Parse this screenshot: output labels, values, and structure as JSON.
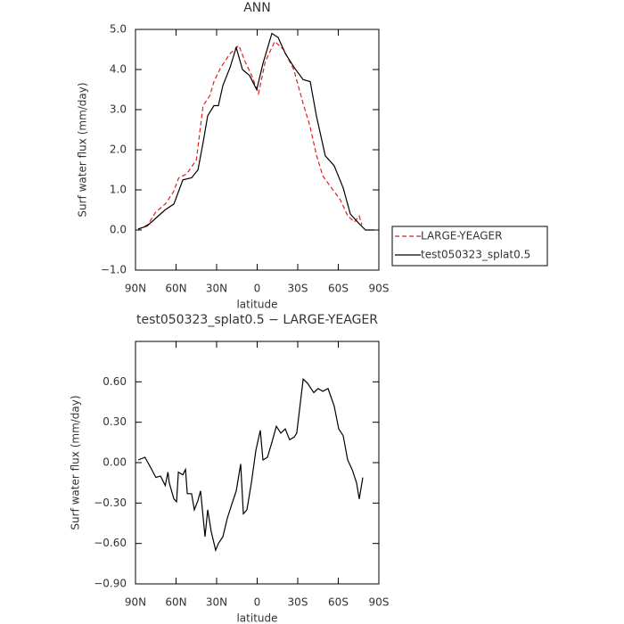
{
  "chart_data": [
    {
      "type": "line",
      "title": "ANN",
      "xlabel": "latitude",
      "ylabel": "Surf water flux (mm/day)",
      "xlim": [
        90,
        -90
      ],
      "ylim": [
        -1,
        5
      ],
      "xticks": [
        {
          "value": 90,
          "label": "90N"
        },
        {
          "value": 60,
          "label": "60N"
        },
        {
          "value": 30,
          "label": "30N"
        },
        0,
        {
          "value": -30,
          "label": "30S"
        },
        {
          "value": -60,
          "label": "60S"
        },
        {
          "value": -90,
          "label": "90S"
        }
      ],
      "yticks": [
        {
          "value": -1,
          "label": "−1.0"
        },
        {
          "value": 0,
          "label": "0.0"
        },
        {
          "value": 1,
          "label": "1.0"
        },
        {
          "value": 2,
          "label": "2.0"
        },
        {
          "value": 3,
          "label": "3.0"
        },
        {
          "value": 4,
          "label": "4.0"
        },
        {
          "value": 5,
          "label": "5.0"
        }
      ],
      "legend": "right",
      "series": [
        {
          "name": "LARGE-YEAGER",
          "color": "#e02020",
          "linestyle": "dashed",
          "x": [
            88,
            81,
            75,
            68,
            62,
            58,
            52,
            45,
            40,
            35,
            32,
            27,
            20,
            13.5,
            9,
            4,
            -1,
            -6,
            -13,
            -19.5,
            -27,
            -34,
            -39,
            -44,
            -48.5,
            -55,
            -61.6,
            -67,
            -72,
            -75.5,
            -77.5
          ],
          "values": [
            0.02,
            0.13,
            0.45,
            0.65,
            0.95,
            1.3,
            1.4,
            1.75,
            3.1,
            3.35,
            3.7,
            4.05,
            4.4,
            4.6,
            4.2,
            3.85,
            3.4,
            4.2,
            4.7,
            4.5,
            4.0,
            3.15,
            2.6,
            1.85,
            1.35,
            1.05,
            0.75,
            0.35,
            0.2,
            0.35,
            0.13
          ]
        },
        {
          "name": "test050323_splat0.5",
          "color": "#000000",
          "linestyle": "solid",
          "x": [
            88,
            81.4,
            74.8,
            68.2,
            61.6,
            58.3,
            55,
            48.5,
            43.8,
            39.9,
            36.6,
            32,
            28.7,
            25.4,
            20.1,
            15.5,
            10.9,
            5.6,
            0.3,
            -4.3,
            -10.9,
            -15.5,
            -20.8,
            -27.4,
            -34,
            -39.2,
            -43.8,
            -50.4,
            -57,
            -63.6,
            -68.9,
            -74.8,
            -80.1,
            -86.7
          ],
          "values": [
            0.02,
            0.1,
            0.3,
            0.5,
            0.65,
            0.95,
            1.25,
            1.3,
            1.5,
            2.2,
            2.85,
            3.1,
            3.1,
            3.6,
            4.05,
            4.55,
            4.0,
            3.85,
            3.5,
            4.15,
            4.9,
            4.8,
            4.4,
            4.05,
            3.75,
            3.7,
            2.85,
            1.85,
            1.6,
            1.05,
            0.4,
            0.18,
            0,
            0
          ]
        }
      ]
    },
    {
      "type": "line",
      "title": "test050323_splat0.5 − LARGE-YEAGER",
      "xlabel": "latitude",
      "ylabel": "Surf water flux (mm/day)",
      "xlim": [
        90,
        -90
      ],
      "ylim": [
        -0.9,
        0.9
      ],
      "xticks": [
        {
          "value": 90,
          "label": "90N"
        },
        {
          "value": 60,
          "label": "60N"
        },
        {
          "value": 30,
          "label": "30N"
        },
        0,
        {
          "value": -30,
          "label": "30S"
        },
        {
          "value": -60,
          "label": "60S"
        },
        {
          "value": -90,
          "label": "90S"
        }
      ],
      "yticks": [
        {
          "value": -0.9,
          "label": "−0.90"
        },
        {
          "value": -0.6,
          "label": "−0.60"
        },
        {
          "value": -0.3,
          "label": "−0.30"
        },
        {
          "value": 0,
          "label": "0.00"
        },
        {
          "value": 0.3,
          "label": "0.30"
        },
        {
          "value": 0.6,
          "label": "0.60"
        }
      ],
      "series": [
        {
          "color": "#000000",
          "linestyle": "solid",
          "x": [
            88,
            83,
            78,
            75,
            71.5,
            68,
            66,
            65,
            61.6,
            59.6,
            58.3,
            55,
            53,
            51.7,
            48.5,
            46.5,
            43.8,
            41.9,
            38.6,
            36.6,
            34,
            30.7,
            28.7,
            25.4,
            22,
            18.8,
            15.5,
            12.2,
            10.2,
            7.6,
            4.3,
            1,
            -2.3,
            -4.3,
            -7.6,
            -10.9,
            -14.2,
            -17.5,
            -20.8,
            -24,
            -27.4,
            -29.3,
            -34,
            -37.2,
            -41.9,
            -45,
            -48.5,
            -52.4,
            -57,
            -60.3,
            -63.6,
            -66.9,
            -70.2,
            -73.5,
            -75.5,
            -78.1
          ],
          "values": [
            0.02,
            0.04,
            -0.05,
            -0.11,
            -0.1,
            -0.17,
            -0.07,
            -0.15,
            -0.27,
            -0.29,
            -0.07,
            -0.09,
            -0.05,
            -0.23,
            -0.23,
            -0.35,
            -0.28,
            -0.21,
            -0.55,
            -0.35,
            -0.51,
            -0.65,
            -0.6,
            -0.55,
            -0.41,
            -0.31,
            -0.21,
            -0.01,
            -0.38,
            -0.35,
            -0.15,
            0.09,
            0.24,
            0.02,
            0.04,
            0.15,
            0.27,
            0.22,
            0.25,
            0.17,
            0.19,
            0.22,
            0.62,
            0.59,
            0.52,
            0.55,
            0.53,
            0.55,
            0.42,
            0.25,
            0.2,
            0.02,
            -0.05,
            -0.15,
            -0.27,
            -0.11
          ]
        }
      ]
    }
  ]
}
